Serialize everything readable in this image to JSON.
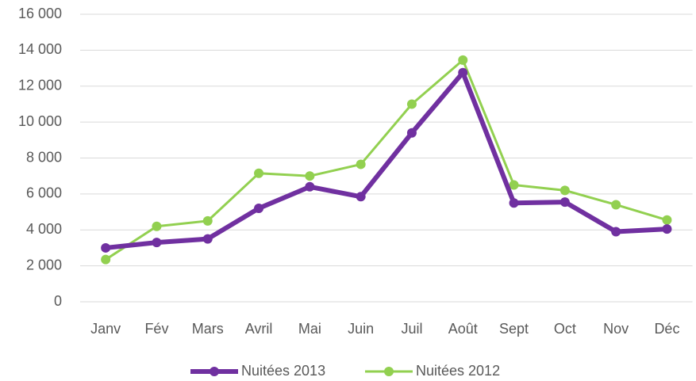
{
  "chart_data": {
    "type": "line",
    "categories": [
      "Janv",
      "Fév",
      "Mars",
      "Avril",
      "Mai",
      "Juin",
      "Juil",
      "Août",
      "Sept",
      "Oct",
      "Nov",
      "Déc"
    ],
    "series": [
      {
        "name": "Nuitées 2013",
        "color": "#7030a0",
        "values": [
          3000,
          3300,
          3500,
          5200,
          6400,
          5850,
          9400,
          12750,
          5500,
          5550,
          3900,
          4050
        ]
      },
      {
        "name": "Nuitées 2012",
        "color": "#92d050",
        "values": [
          2350,
          4200,
          4500,
          7150,
          7000,
          7650,
          11000,
          13450,
          6500,
          6200,
          5400,
          4550
        ]
      }
    ],
    "ylim": [
      0,
      16000
    ],
    "yticks": [
      0,
      {
        "value": 2000,
        "label": "2 000"
      },
      {
        "value": 4000,
        "label": "4 000"
      },
      {
        "value": 6000,
        "label": "6 000"
      },
      {
        "value": 8000,
        "label": "8 000"
      },
      {
        "value": 10000,
        "label": "10 000"
      },
      {
        "value": 12000,
        "label": "12 000"
      },
      {
        "value": 14000,
        "label": "14 000"
      },
      {
        "value": 16000,
        "label": "16 000"
      }
    ],
    "grid": true,
    "legend": "bottom"
  }
}
